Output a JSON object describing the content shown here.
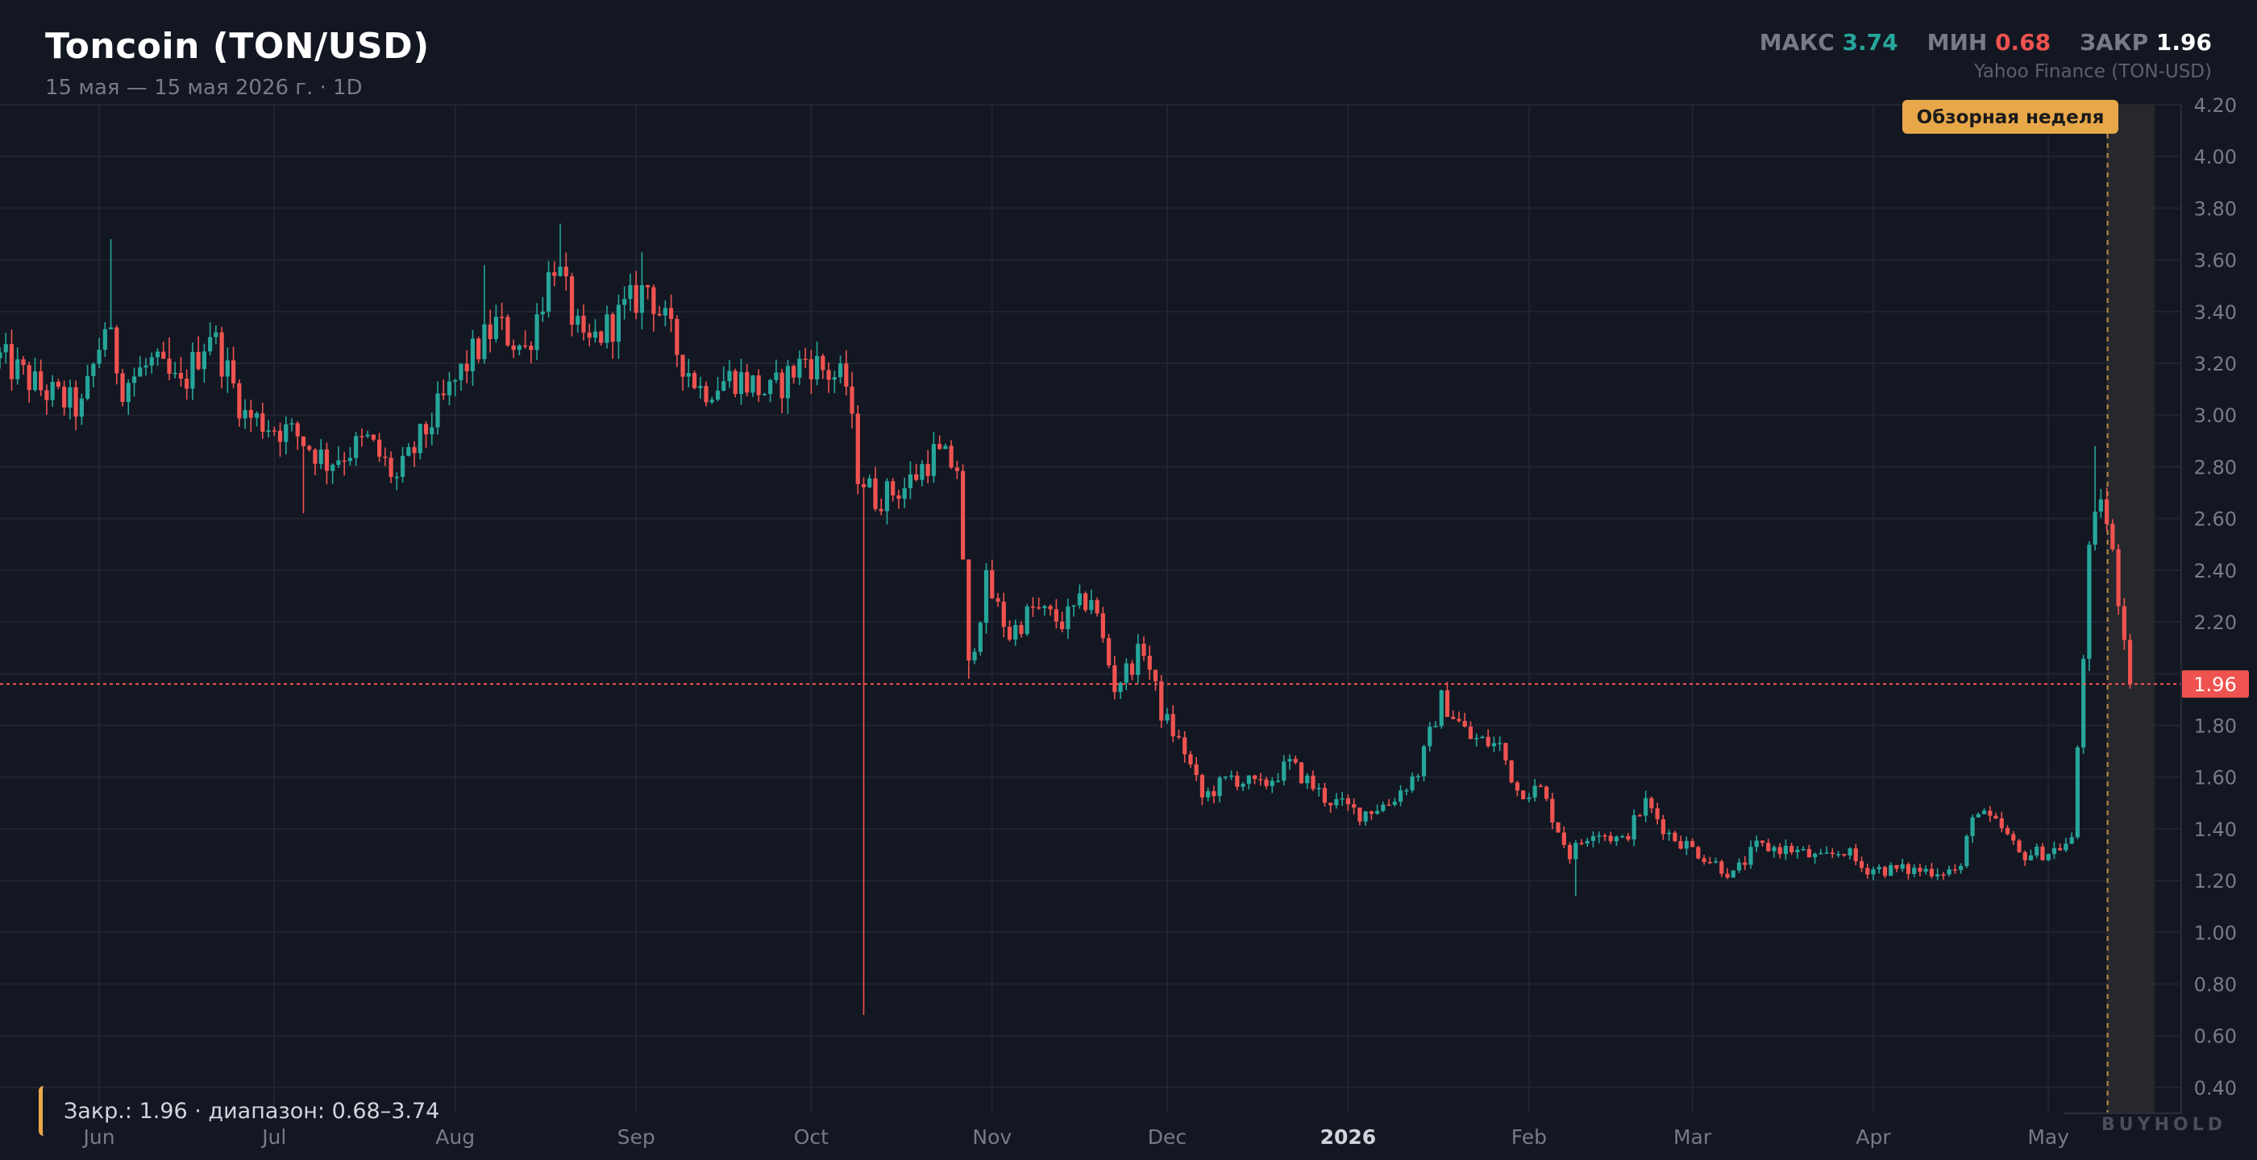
{
  "header": {
    "title": "Toncoin (TON/USD)",
    "subtitle": "15 мая — 15 мая 2026 г. · 1D",
    "stats": {
      "max_label": "МАКС",
      "max_value": "3.74",
      "min_label": "МИН",
      "min_value": "0.68",
      "close_label": "ЗАКР",
      "close_value": "1.96"
    },
    "source": "Yahoo Finance (TON-USD)"
  },
  "footer": {
    "note": "Закр.: 1.96 · диапазон: 0.68–3.74",
    "brand": "BUYHOLD"
  },
  "colors": {
    "up": "#26a69a",
    "down": "#ef5350",
    "background": "#131722",
    "grid": "#1f2430",
    "highlight": "#e8a84a"
  },
  "chart_data": {
    "type": "candlestick",
    "title": "Toncoin (TON/USD)",
    "xlabel": "",
    "ylabel": "",
    "ylim": [
      0.3,
      4.2
    ],
    "grid": true,
    "y_ticks": [
      0.4,
      0.6,
      0.8,
      1.0,
      1.2,
      1.4,
      1.6,
      1.8,
      2.0,
      2.2,
      2.4,
      2.6,
      2.8,
      3.0,
      3.2,
      3.4,
      3.6,
      3.8,
      4.0,
      4.2
    ],
    "x_ticks": [
      {
        "label": "Jun",
        "date": "2025-06-01",
        "bold": false
      },
      {
        "label": "Jul",
        "date": "2025-07-01",
        "bold": false
      },
      {
        "label": "Aug",
        "date": "2025-08-01",
        "bold": false
      },
      {
        "label": "Sep",
        "date": "2025-09-01",
        "bold": false
      },
      {
        "label": "Oct",
        "date": "2025-10-01",
        "bold": false
      },
      {
        "label": "Nov",
        "date": "2025-11-01",
        "bold": false
      },
      {
        "label": "Dec",
        "date": "2025-12-01",
        "bold": false
      },
      {
        "label": "2026",
        "date": "2026-01-01",
        "bold": true
      },
      {
        "label": "Feb",
        "date": "2026-02-01",
        "bold": false
      },
      {
        "label": "Mar",
        "date": "2026-03-01",
        "bold": false
      },
      {
        "label": "Apr",
        "date": "2026-04-01",
        "bold": false
      },
      {
        "label": "May",
        "date": "2026-05-01",
        "bold": false
      }
    ],
    "x_range": [
      "2025-05-15",
      "2026-05-21"
    ],
    "last_close": 1.96,
    "last_close_label": "1.96",
    "highlight_week": {
      "label": "Обзорная неделя",
      "start": "2026-05-11",
      "end": "2026-05-17",
      "marker": "2026-05-11"
    },
    "close_anchors": [
      [
        "2025-05-15",
        3.22
      ],
      [
        "2025-05-22",
        3.1
      ],
      [
        "2025-05-29",
        3.02
      ],
      [
        "2025-06-02",
        3.35
      ],
      [
        "2025-06-05",
        3.12
      ],
      [
        "2025-06-10",
        3.2
      ],
      [
        "2025-06-15",
        3.1
      ],
      [
        "2025-06-20",
        3.33
      ],
      [
        "2025-06-26",
        3.0
      ],
      [
        "2025-07-05",
        2.92
      ],
      [
        "2025-07-10",
        2.82
      ],
      [
        "2025-07-17",
        2.9
      ],
      [
        "2025-07-22",
        2.75
      ],
      [
        "2025-07-28",
        2.98
      ],
      [
        "2025-08-03",
        3.2
      ],
      [
        "2025-08-08",
        3.35
      ],
      [
        "2025-08-13",
        3.25
      ],
      [
        "2025-08-18",
        3.6
      ],
      [
        "2025-08-23",
        3.25
      ],
      [
        "2025-08-29",
        3.38
      ],
      [
        "2025-09-03",
        3.5
      ],
      [
        "2025-09-08",
        3.25
      ],
      [
        "2025-09-12",
        3.1
      ],
      [
        "2025-09-18",
        3.15
      ],
      [
        "2025-09-24",
        3.08
      ],
      [
        "2025-09-30",
        3.22
      ],
      [
        "2025-10-07",
        3.12
      ],
      [
        "2025-10-09",
        2.78
      ],
      [
        "2025-10-12",
        2.68
      ],
      [
        "2025-10-17",
        2.72
      ],
      [
        "2025-10-22",
        2.85
      ],
      [
        "2025-10-26",
        2.8
      ],
      [
        "2025-10-28",
        2.02
      ],
      [
        "2025-10-31",
        2.35
      ],
      [
        "2025-11-04",
        2.15
      ],
      [
        "2025-11-08",
        2.25
      ],
      [
        "2025-11-13",
        2.2
      ],
      [
        "2025-11-18",
        2.3
      ],
      [
        "2025-11-22",
        1.95
      ],
      [
        "2025-11-27",
        2.1
      ],
      [
        "2025-11-30",
        1.85
      ],
      [
        "2025-12-04",
        1.7
      ],
      [
        "2025-12-07",
        1.52
      ],
      [
        "2025-12-12",
        1.6
      ],
      [
        "2025-12-17",
        1.56
      ],
      [
        "2025-12-22",
        1.65
      ],
      [
        "2025-12-28",
        1.52
      ],
      [
        "2026-01-03",
        1.46
      ],
      [
        "2026-01-08",
        1.5
      ],
      [
        "2026-01-13",
        1.62
      ],
      [
        "2026-01-17",
        1.9
      ],
      [
        "2026-01-22",
        1.75
      ],
      [
        "2026-01-27",
        1.72
      ],
      [
        "2026-01-30",
        1.55
      ],
      [
        "2026-02-03",
        1.55
      ],
      [
        "2026-02-08",
        1.3
      ],
      [
        "2026-02-12",
        1.4
      ],
      [
        "2026-02-17",
        1.35
      ],
      [
        "2026-02-21",
        1.5
      ],
      [
        "2026-02-25",
        1.38
      ],
      [
        "2026-03-04",
        1.28
      ],
      [
        "2026-03-08",
        1.22
      ],
      [
        "2026-03-12",
        1.33
      ],
      [
        "2026-03-18",
        1.32
      ],
      [
        "2026-03-23",
        1.28
      ],
      [
        "2026-03-27",
        1.32
      ],
      [
        "2026-03-30",
        1.25
      ],
      [
        "2026-04-05",
        1.24
      ],
      [
        "2026-04-12",
        1.24
      ],
      [
        "2026-04-16",
        1.24
      ],
      [
        "2026-04-18",
        1.47
      ],
      [
        "2026-04-23",
        1.4
      ],
      [
        "2026-04-26",
        1.3
      ],
      [
        "2026-05-01",
        1.31
      ],
      [
        "2026-05-05",
        1.35
      ],
      [
        "2026-05-08",
        2.45
      ],
      [
        "2026-05-10",
        2.7
      ],
      [
        "2026-05-12",
        2.45
      ],
      [
        "2026-05-14",
        2.15
      ],
      [
        "2026-05-15",
        1.96
      ]
    ],
    "extreme_wicks": [
      {
        "date": "2025-06-03",
        "high": 3.68
      },
      {
        "date": "2025-06-13",
        "high": 3.3
      },
      {
        "date": "2025-07-06",
        "low": 2.62
      },
      {
        "date": "2025-08-06",
        "high": 3.58
      },
      {
        "date": "2025-08-19",
        "high": 3.74
      },
      {
        "date": "2025-09-02",
        "high": 3.63
      },
      {
        "date": "2025-10-10",
        "low": 0.68
      },
      {
        "date": "2025-10-28",
        "low": 1.98
      },
      {
        "date": "2026-02-09",
        "low": 1.14
      },
      {
        "date": "2026-05-09",
        "high": 2.88
      }
    ]
  }
}
